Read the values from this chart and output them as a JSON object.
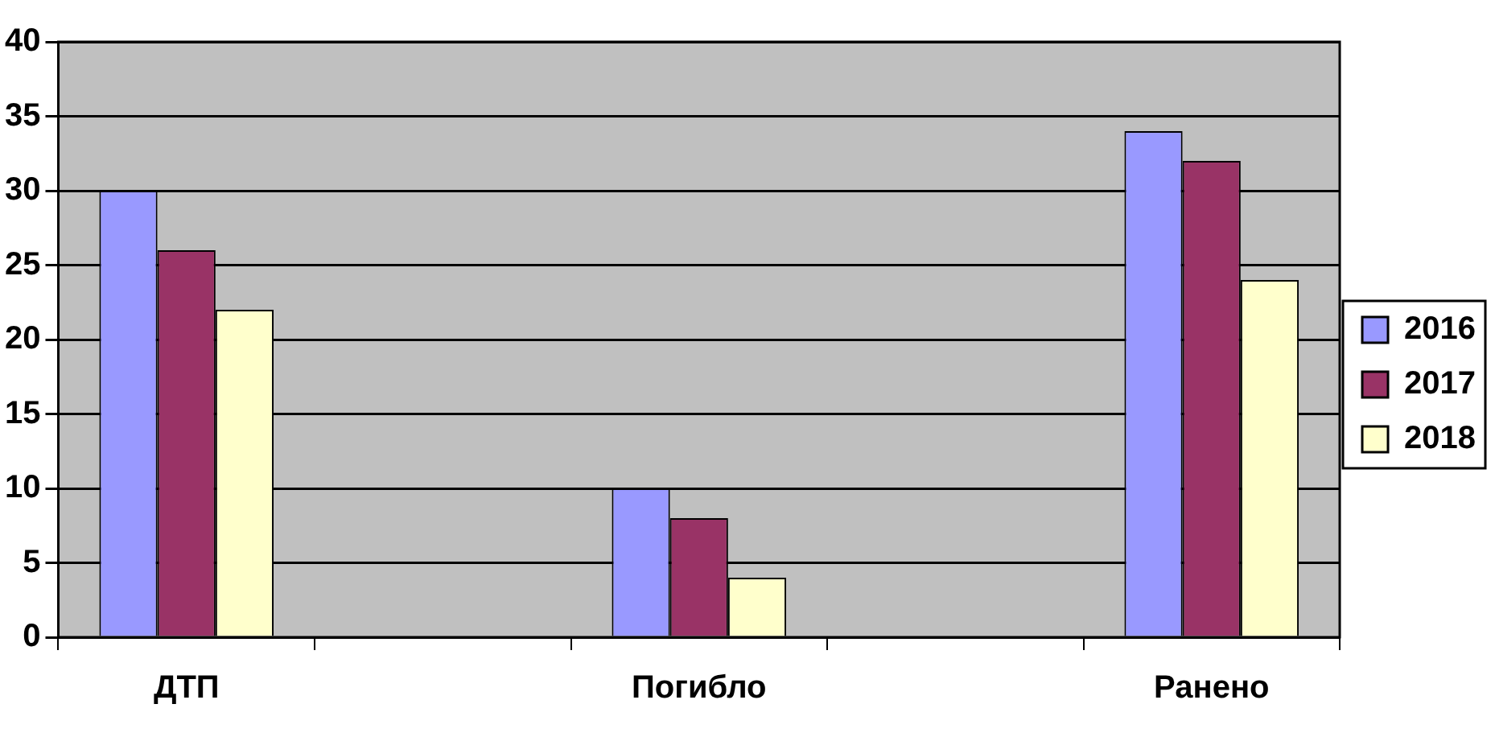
{
  "chart_data": {
    "type": "bar",
    "categories": [
      "ДТП",
      null,
      "Погибло",
      null,
      "Ранено"
    ],
    "series": [
      {
        "name": "2016",
        "color": "#9999ff",
        "values": [
          30,
          null,
          10,
          null,
          34
        ]
      },
      {
        "name": "2017",
        "color": "#993366",
        "values": [
          26,
          null,
          8,
          null,
          32
        ]
      },
      {
        "name": "2018",
        "color": "#ffffcc",
        "values": [
          22,
          null,
          4,
          null,
          24
        ]
      }
    ],
    "ylim": [
      0,
      40
    ],
    "yticks": [
      0,
      5,
      10,
      15,
      20,
      25,
      30,
      35,
      40
    ],
    "grid": "y",
    "legend": "right"
  }
}
